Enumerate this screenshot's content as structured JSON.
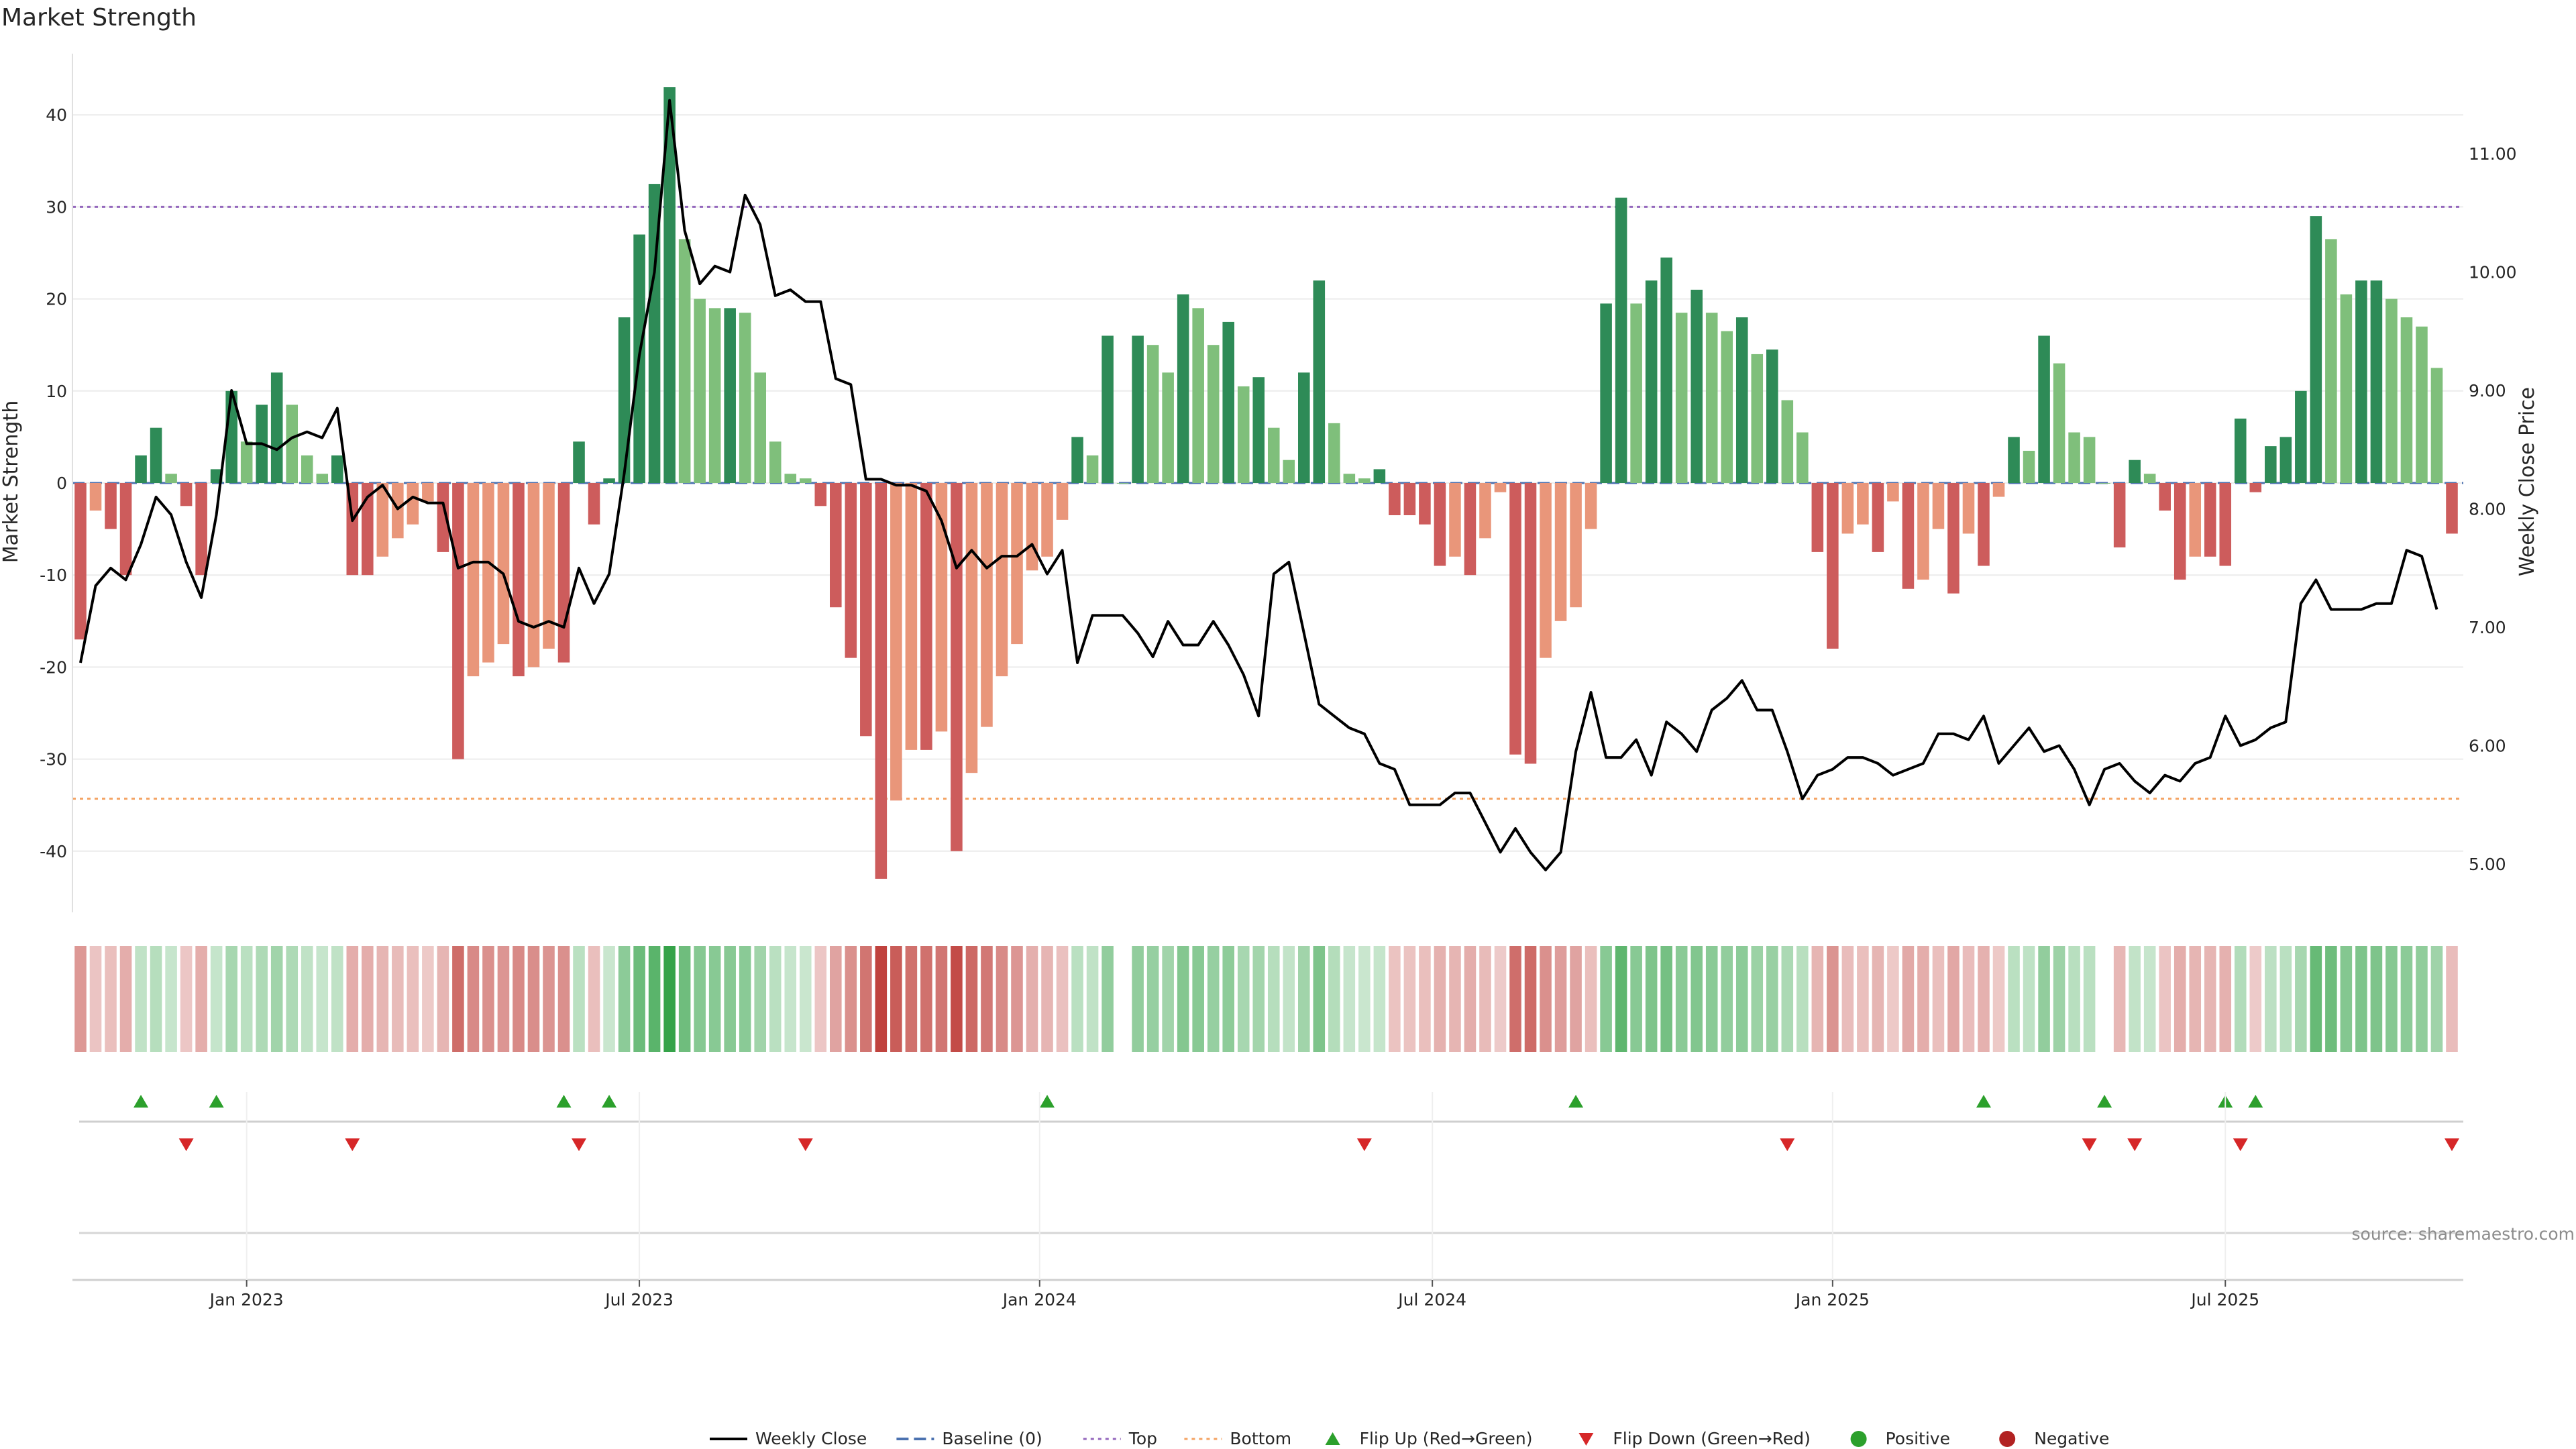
{
  "chart_data": {
    "type": "bar",
    "title": "Market Strength",
    "ylabel": "Market Strength",
    "y2label": "Weekly Close Price",
    "ylim": [
      -46,
      47
    ],
    "y2lim": [
      4.6,
      11.65
    ],
    "y_ticks": [
      40,
      30,
      20,
      10,
      0,
      -10,
      -20,
      -30,
      -40
    ],
    "y2_ticks": [
      "11.00",
      "10.00",
      "9.00",
      "8.00",
      "7.00",
      "6.00",
      "5.00"
    ],
    "x_ticks": [
      {
        "label": "Jan 2023",
        "week": 11
      },
      {
        "label": "Jul 2023",
        "week": 37
      },
      {
        "label": "Jan 2024",
        "week": 63.5
      },
      {
        "label": "Jul 2024",
        "week": 89.5
      },
      {
        "label": "Jan 2025",
        "week": 116
      },
      {
        "label": "Jul 2025",
        "week": 142
      }
    ],
    "top_threshold": 30,
    "bottom_threshold": -34.3,
    "series": [
      {
        "name": "Market Strength",
        "values": [
          -17,
          -3,
          -5,
          -10,
          3,
          6,
          1,
          -2.5,
          -10,
          1.5,
          10,
          4.5,
          8.5,
          12,
          8.5,
          3,
          1,
          3,
          -10,
          -10,
          -8,
          -6,
          -4.5,
          -2,
          -7.5,
          -30,
          -21,
          -19.5,
          -17.5,
          -21,
          -20,
          -18,
          -19.5,
          4.5,
          -4.5,
          0.5,
          18,
          27,
          32.5,
          43,
          26.5,
          20,
          19,
          19,
          18.5,
          12,
          4.5,
          1,
          0.5,
          -2.5,
          -13.5,
          -19,
          -27.5,
          -43,
          -34.5,
          -29,
          -29,
          -27,
          -40,
          -31.5,
          -26.5,
          -21,
          -17.5,
          -9.5,
          -8,
          -4,
          5,
          3,
          16,
          0,
          16,
          15,
          12,
          20.5,
          19,
          15,
          17.5,
          10.5,
          11.5,
          6,
          2.5,
          12,
          22,
          6.5,
          1,
          0.5,
          1.5,
          -3.5,
          -3.5,
          -4.5,
          -9,
          -8,
          -10,
          -6,
          -1,
          -29.5,
          -30.5,
          -19,
          -15,
          -13.5,
          -5,
          19.5,
          31,
          19.5,
          22,
          24.5,
          18.5,
          21,
          18.5,
          16.5,
          18,
          14,
          14.5,
          9,
          5.5,
          -7.5,
          -18,
          -5.5,
          -4.5,
          -7.5,
          -2,
          -11.5,
          -10.5,
          -5,
          -12,
          -5.5,
          -9,
          -1.5,
          5,
          3.5,
          16,
          13,
          5.5,
          5,
          0,
          -7,
          2.5,
          1,
          -3,
          -10.5,
          -8,
          -8,
          -9,
          7,
          -1,
          4,
          5,
          10,
          29,
          26.5,
          20.5,
          22,
          22,
          20,
          18,
          17,
          12.5,
          -5.5
        ]
      },
      {
        "name": "Weekly Close",
        "values": [
          6.7,
          7.35,
          7.5,
          7.4,
          7.7,
          8.1,
          7.95,
          7.55,
          7.25,
          7.95,
          9.0,
          8.55,
          8.55,
          8.5,
          8.6,
          8.65,
          8.6,
          8.85,
          7.9,
          8.1,
          8.2,
          8.0,
          8.1,
          8.05,
          8.05,
          7.5,
          7.55,
          7.55,
          7.45,
          7.05,
          7.0,
          7.05,
          7.0,
          7.5,
          7.2,
          7.45,
          8.3,
          9.3,
          10.0,
          11.45,
          10.35,
          9.9,
          10.05,
          10.0,
          10.65,
          10.4,
          9.8,
          9.85,
          9.75,
          9.75,
          9.1,
          9.05,
          8.25,
          8.25,
          8.2,
          8.2,
          8.15,
          7.9,
          7.5,
          7.65,
          7.5,
          7.6,
          7.6,
          7.7,
          7.45,
          7.65,
          6.7,
          7.1,
          7.1,
          7.1,
          6.95,
          6.75,
          7.05,
          6.85,
          6.85,
          7.05,
          6.85,
          6.6,
          6.25,
          7.45,
          7.55,
          6.95,
          6.35,
          6.25,
          6.15,
          6.1,
          5.85,
          5.8,
          5.5,
          5.5,
          5.5,
          5.6,
          5.6,
          5.35,
          5.1,
          5.3,
          5.1,
          4.95,
          5.1,
          5.95,
          6.45,
          5.9,
          5.9,
          6.05,
          5.75,
          6.2,
          6.1,
          5.95,
          6.3,
          6.4,
          6.55,
          6.3,
          6.3,
          5.95,
          5.55,
          5.75,
          5.8,
          5.9,
          5.9,
          5.85,
          5.75,
          5.8,
          5.85,
          6.1,
          6.1,
          6.05,
          6.25,
          5.85,
          6.0,
          6.15,
          5.95,
          6.0,
          5.8,
          5.5,
          5.8,
          5.85,
          5.7,
          5.6,
          5.75,
          5.7,
          5.85,
          5.9,
          6.25,
          6.0,
          6.05,
          6.15,
          6.2,
          7.2,
          7.4,
          7.15,
          7.15,
          7.15,
          7.2,
          7.2,
          7.65,
          7.6,
          7.15
        ]
      }
    ],
    "flip_up_weeks": [
      4,
      9,
      32,
      35,
      64,
      99,
      126,
      134,
      142,
      144
    ],
    "flip_down_weeks": [
      7,
      18,
      33,
      48,
      85,
      113,
      133,
      136,
      143,
      157
    ],
    "legend": {
      "position": "bottom-center",
      "items": [
        "Weekly Close",
        "Baseline (0)",
        "Top",
        "Bottom",
        "Flip Up (Red→Green)",
        "Flip Down (Green→Red)",
        "Positive",
        "Negative"
      ]
    },
    "colors": {
      "positive_strong": "#2e8b57",
      "positive_light": "#7fbf7b",
      "negative_strong": "#cd5c5c",
      "negative_light": "#e9967a",
      "price_line": "#000000",
      "baseline": "#4c72b0",
      "top": "#9467bd",
      "bottom": "#f4a261",
      "flip_up": "#2ca02c",
      "flip_down": "#d62728",
      "positive_marker": "#2ca02c",
      "negative_marker": "#b22222"
    },
    "source": "source: sharemaestro.com"
  }
}
